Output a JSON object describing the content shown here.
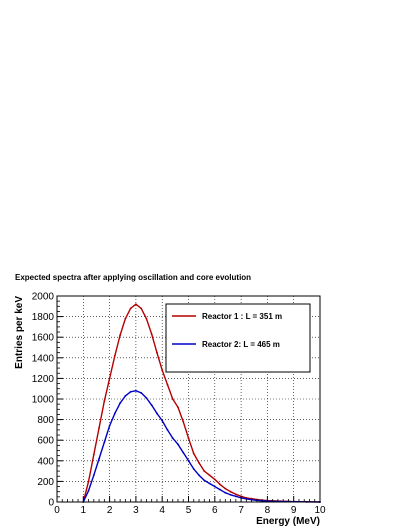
{
  "chart_data": {
    "type": "line",
    "title": "Expected spectra after applying oscillation and core evolution",
    "xlabel": "Energy (MeV)",
    "ylabel": "Entries per keV",
    "xlim": [
      0,
      10
    ],
    "ylim": [
      0,
      2000
    ],
    "x_ticks": [
      0,
      1,
      2,
      3,
      4,
      5,
      6,
      7,
      8,
      9,
      10
    ],
    "y_ticks": [
      0,
      200,
      400,
      600,
      800,
      1000,
      1200,
      1400,
      1600,
      1800,
      2000
    ],
    "grid": true,
    "legend_position": "top-right",
    "series": [
      {
        "name": "Reactor 1 : L = 351 m",
        "color": "#b40000",
        "x": [
          1.0,
          1.2,
          1.4,
          1.6,
          1.8,
          2.0,
          2.2,
          2.4,
          2.6,
          2.8,
          3.0,
          3.2,
          3.4,
          3.6,
          3.8,
          4.0,
          4.2,
          4.4,
          4.6,
          4.8,
          5.0,
          5.2,
          5.4,
          5.6,
          5.8,
          6.0,
          6.2,
          6.4,
          6.6,
          6.8,
          7.0,
          7.2,
          7.4,
          7.6,
          7.8,
          8.0,
          8.5,
          9.0,
          9.5,
          10.0
        ],
        "values": [
          0,
          200,
          460,
          720,
          980,
          1200,
          1420,
          1620,
          1780,
          1880,
          1920,
          1880,
          1780,
          1630,
          1450,
          1280,
          1140,
          1000,
          920,
          780,
          620,
          470,
          380,
          300,
          260,
          220,
          170,
          130,
          100,
          75,
          55,
          40,
          32,
          24,
          18,
          14,
          8,
          4,
          2,
          0
        ]
      },
      {
        "name": "Reactor 2: L = 465 m",
        "color": "#0000c8",
        "x": [
          1.0,
          1.2,
          1.4,
          1.6,
          1.8,
          2.0,
          2.2,
          2.4,
          2.6,
          2.8,
          3.0,
          3.2,
          3.4,
          3.6,
          3.8,
          4.0,
          4.2,
          4.4,
          4.6,
          4.8,
          5.0,
          5.2,
          5.4,
          5.6,
          5.8,
          6.0,
          6.2,
          6.4,
          6.6,
          6.8,
          7.0,
          7.2,
          7.4,
          7.6,
          7.8,
          8.0,
          8.5,
          9.0,
          9.5,
          10.0
        ],
        "values": [
          0,
          110,
          260,
          420,
          580,
          740,
          860,
          960,
          1030,
          1070,
          1080,
          1060,
          1010,
          940,
          860,
          790,
          700,
          620,
          560,
          480,
          400,
          320,
          260,
          210,
          180,
          150,
          120,
          90,
          70,
          55,
          40,
          30,
          22,
          16,
          12,
          9,
          5,
          3,
          1,
          0
        ]
      }
    ]
  }
}
